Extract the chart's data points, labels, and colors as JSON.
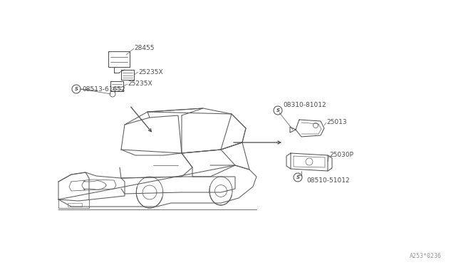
{
  "bg_color": "#ffffff",
  "line_color": "#4a4a4a",
  "diagram_code": "A253*0236",
  "parts": {
    "top_left_cluster": {
      "label_28455": "28455",
      "label_25235X_1": "25235X",
      "label_25235X_2": "25235X",
      "label_screw1": "08513-61652"
    },
    "right_cluster": {
      "label_08310": "08310-81012",
      "label_25013": "25013",
      "label_25030P": "25030P",
      "label_08510": "08510-51012"
    }
  },
  "font_size_labels": 6.5,
  "font_size_code": 6.0,
  "car_line_color": "#5a5a5a",
  "lw_car": 0.75,
  "lw_parts": 0.7
}
